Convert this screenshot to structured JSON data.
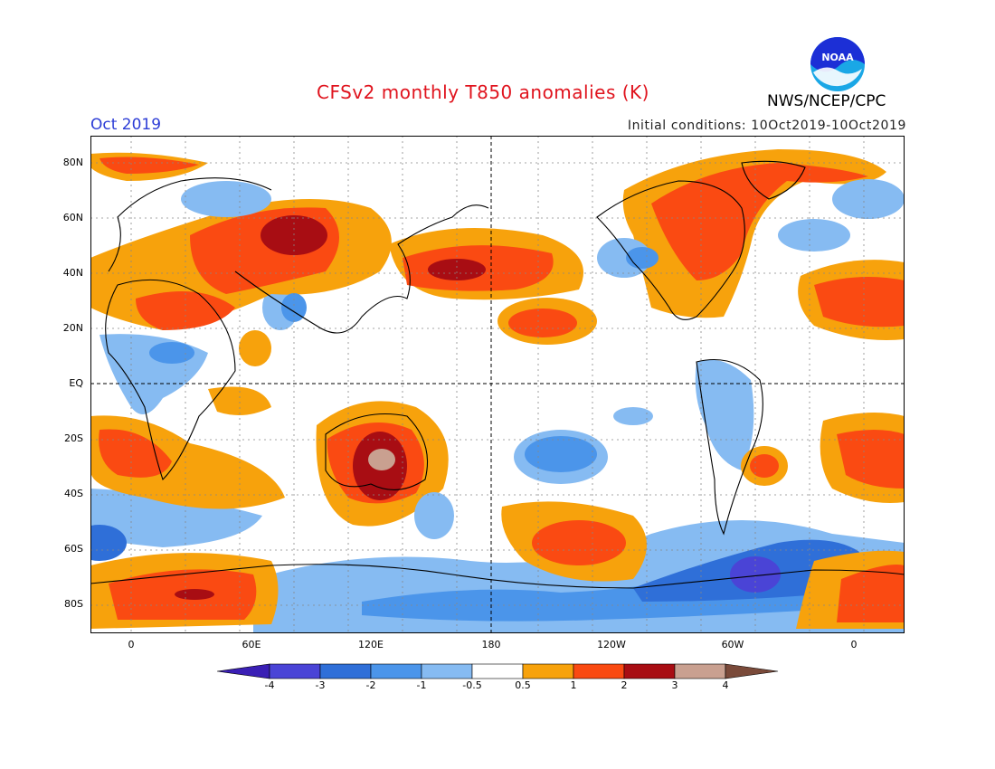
{
  "header": {
    "title": "CFSv2 monthly T850 anomalies (K)",
    "month": "Oct 2019",
    "initial_conditions": "Initial conditions: 10Oct2019-10Oct2019",
    "agency": "NWS/NCEP/CPC",
    "logo_text": "NOAA"
  },
  "axes": {
    "lat_labels": [
      "80N",
      "60N",
      "40N",
      "20N",
      "EQ",
      "20S",
      "40S",
      "60S",
      "80S"
    ],
    "lon_labels": [
      "0",
      "60E",
      "120E",
      "180",
      "120W",
      "60W",
      "0"
    ]
  },
  "colorbar": {
    "labels": [
      "-4",
      "-3",
      "-2",
      "-1",
      "-0.5",
      "0.5",
      "1",
      "2",
      "3",
      "4"
    ],
    "colors": [
      "#3a1fb5",
      "#4a44d6",
      "#2f6fd8",
      "#4b95ea",
      "#86bbf2",
      "#ffffff",
      "#f7a20c",
      "#fa4a12",
      "#a80d13",
      "#c9a090",
      "#7a4a3a"
    ]
  }
}
